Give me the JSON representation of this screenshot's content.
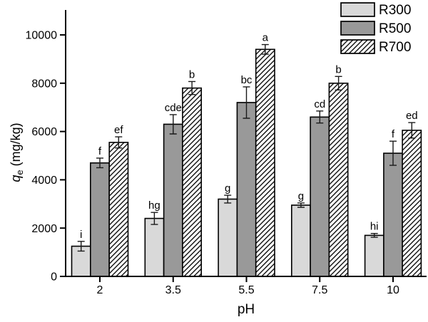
{
  "figure": {
    "background": "#ffffff"
  },
  "chart_data": {
    "type": "bar",
    "title": "",
    "xlabel": "pH",
    "ylabel": {
      "variable": "q",
      "subscript": "e",
      "units": "(mg/kg)",
      "text": "qe (mg/kg)"
    },
    "categories": [
      "2",
      "3.5",
      "5.5",
      "7.5",
      "10"
    ],
    "ylim": [
      0,
      11000
    ],
    "yticks": [
      0,
      2000,
      4000,
      6000,
      8000,
      10000
    ],
    "grid": false,
    "legend_position": "top-right",
    "series": [
      {
        "name": "R300",
        "fill": "#d9d9d9",
        "pattern": "none",
        "values": [
          1250,
          2400,
          3200,
          2950,
          1700
        ],
        "errors": [
          200,
          250,
          160,
          90,
          80
        ],
        "letters": [
          "i",
          "hg",
          "g",
          "g",
          "hi"
        ]
      },
      {
        "name": "R500",
        "fill": "#999999",
        "pattern": "none",
        "values": [
          4700,
          6300,
          7200,
          6600,
          5100
        ],
        "errors": [
          200,
          400,
          650,
          250,
          500
        ],
        "letters": [
          "f",
          "cde",
          "bc",
          "cd",
          "f"
        ]
      },
      {
        "name": "R700",
        "fill": "#ffffff",
        "pattern": "diagonal-hatch",
        "values": [
          5550,
          7800,
          9400,
          8000,
          6050
        ],
        "errors": [
          230,
          270,
          200,
          280,
          320
        ],
        "letters": [
          "ef",
          "b",
          "a",
          "b",
          "ed"
        ]
      }
    ],
    "colors": {
      "axis": "#000000",
      "bar_border": "#000000",
      "error_bar": "#1a1a1a",
      "hatch_line": "#000000",
      "letter_text": "#000000"
    }
  }
}
